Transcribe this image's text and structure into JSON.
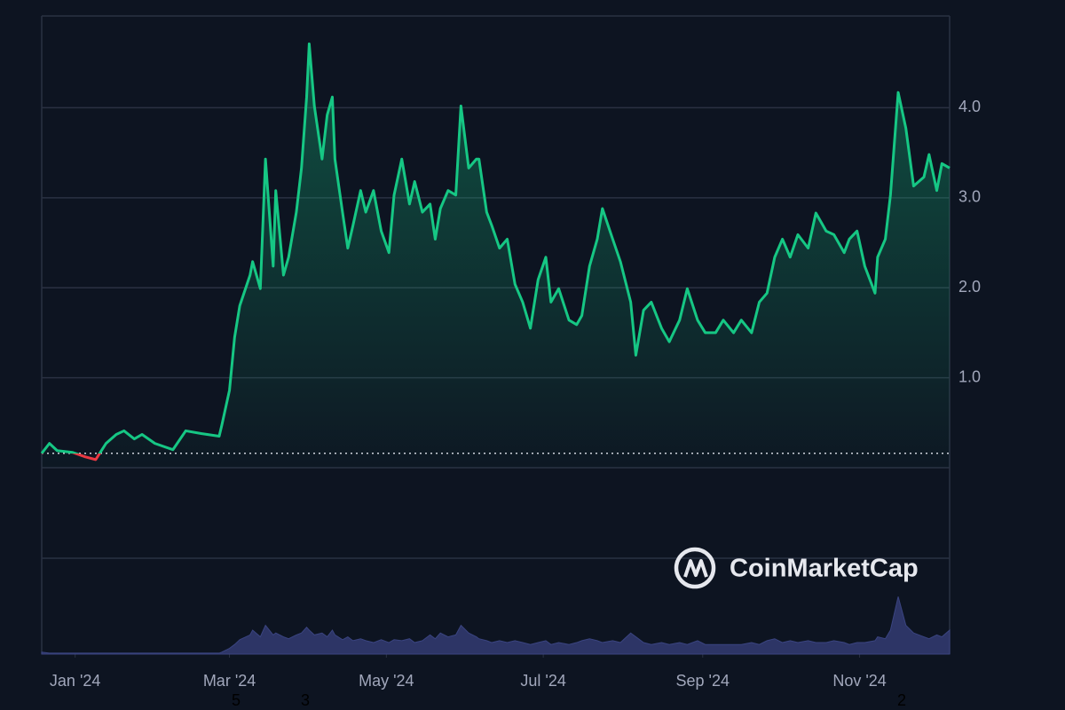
{
  "chart_data": {
    "type": "line",
    "watermark": "CoinMarketCap",
    "bottom_labels": [
      "5",
      "3",
      "2"
    ],
    "xlim": [
      -13,
      340
    ],
    "xticks": [
      {
        "value": 0,
        "label": "Jan '24"
      },
      {
        "value": 60,
        "label": "Mar '24"
      },
      {
        "value": 121,
        "label": "May '24"
      },
      {
        "value": 182,
        "label": "Jul '24"
      },
      {
        "value": 244,
        "label": "Sep '24"
      },
      {
        "value": 305,
        "label": "Nov '24"
      }
    ],
    "ylim": [
      0,
      5.02
    ],
    "yticks": [
      {
        "value": 1,
        "label": "1.0"
      },
      {
        "value": 2,
        "label": "2.0"
      },
      {
        "value": 3,
        "label": "3.0"
      },
      {
        "value": 4,
        "label": "4.0"
      }
    ],
    "y2lim": [
      0,
      100
    ],
    "grid": true,
    "baseline": 0.16,
    "down_color": "#ea3943",
    "x": [
      -13,
      -10,
      -7,
      -1,
      4,
      8,
      12,
      16,
      19,
      23,
      26,
      31,
      38,
      43,
      49,
      56,
      57,
      60,
      62,
      64,
      68,
      69,
      72,
      74,
      77,
      78,
      81,
      83,
      86,
      88,
      90,
      91,
      93,
      96,
      98,
      100,
      101,
      104,
      106,
      108,
      111,
      113,
      116,
      119,
      122,
      124,
      127,
      130,
      132,
      135,
      138,
      140,
      142,
      145,
      148,
      150,
      153,
      156,
      157,
      160,
      162,
      165,
      168,
      171,
      174,
      177,
      180,
      183,
      185,
      188,
      192,
      195,
      197,
      200,
      203,
      205,
      209,
      212,
      216,
      218,
      221,
      224,
      228,
      231,
      235,
      238,
      242,
      245,
      249,
      252,
      256,
      259,
      263,
      266,
      269,
      272,
      275,
      278,
      281,
      285,
      288,
      292,
      295,
      299,
      301,
      304,
      307,
      311,
      312,
      315,
      317,
      320,
      323,
      326,
      330,
      332,
      335,
      337,
      340
    ],
    "series": [
      {
        "name": "Price",
        "color": "#16c784",
        "values": [
          0.16,
          0.27,
          0.19,
          0.17,
          0.12,
          0.09,
          0.27,
          0.37,
          0.41,
          0.32,
          0.37,
          0.27,
          0.2,
          0.41,
          0.38,
          0.35,
          0.47,
          0.86,
          1.45,
          1.8,
          2.14,
          2.29,
          1.99,
          3.43,
          2.24,
          3.08,
          2.14,
          2.34,
          2.84,
          3.33,
          4.12,
          4.71,
          4.02,
          3.43,
          3.92,
          4.12,
          3.43,
          2.83,
          2.44,
          2.69,
          3.08,
          2.84,
          3.08,
          2.63,
          2.39,
          3.03,
          3.43,
          2.93,
          3.18,
          2.84,
          2.93,
          2.54,
          2.88,
          3.08,
          3.03,
          4.02,
          3.33,
          3.43,
          3.43,
          2.84,
          2.69,
          2.44,
          2.54,
          2.04,
          1.84,
          1.55,
          2.09,
          2.34,
          1.84,
          1.99,
          1.64,
          1.59,
          1.69,
          2.24,
          2.54,
          2.88,
          2.54,
          2.29,
          1.84,
          1.25,
          1.75,
          1.84,
          1.55,
          1.4,
          1.64,
          1.99,
          1.64,
          1.5,
          1.5,
          1.64,
          1.5,
          1.64,
          1.5,
          1.84,
          1.94,
          2.34,
          2.54,
          2.34,
          2.59,
          2.44,
          2.83,
          2.63,
          2.59,
          2.39,
          2.54,
          2.63,
          2.24,
          1.94,
          2.34,
          2.54,
          3.03,
          4.17,
          3.77,
          3.13,
          3.23,
          3.48,
          3.08,
          3.38,
          3.33
        ]
      },
      {
        "name": "Volume",
        "color": "#2d3566",
        "axis": "y2",
        "values": [
          2,
          1,
          1,
          1,
          1,
          1,
          1,
          1,
          1,
          1,
          1,
          1,
          1,
          1,
          1,
          1,
          2,
          6,
          10,
          15,
          20,
          25,
          18,
          30,
          20,
          22,
          18,
          16,
          20,
          22,
          28,
          25,
          20,
          22,
          18,
          25,
          20,
          15,
          18,
          14,
          16,
          14,
          12,
          15,
          12,
          15,
          14,
          16,
          12,
          14,
          20,
          16,
          22,
          18,
          20,
          30,
          22,
          18,
          16,
          14,
          12,
          14,
          12,
          14,
          12,
          10,
          12,
          14,
          10,
          12,
          10,
          12,
          14,
          16,
          14,
          12,
          14,
          12,
          22,
          18,
          12,
          10,
          12,
          10,
          12,
          10,
          14,
          10,
          10,
          10,
          10,
          10,
          12,
          10,
          14,
          16,
          12,
          14,
          12,
          14,
          12,
          12,
          14,
          12,
          10,
          12,
          12,
          14,
          18,
          16,
          25,
          60,
          30,
          22,
          18,
          16,
          20,
          18,
          25
        ]
      }
    ]
  }
}
